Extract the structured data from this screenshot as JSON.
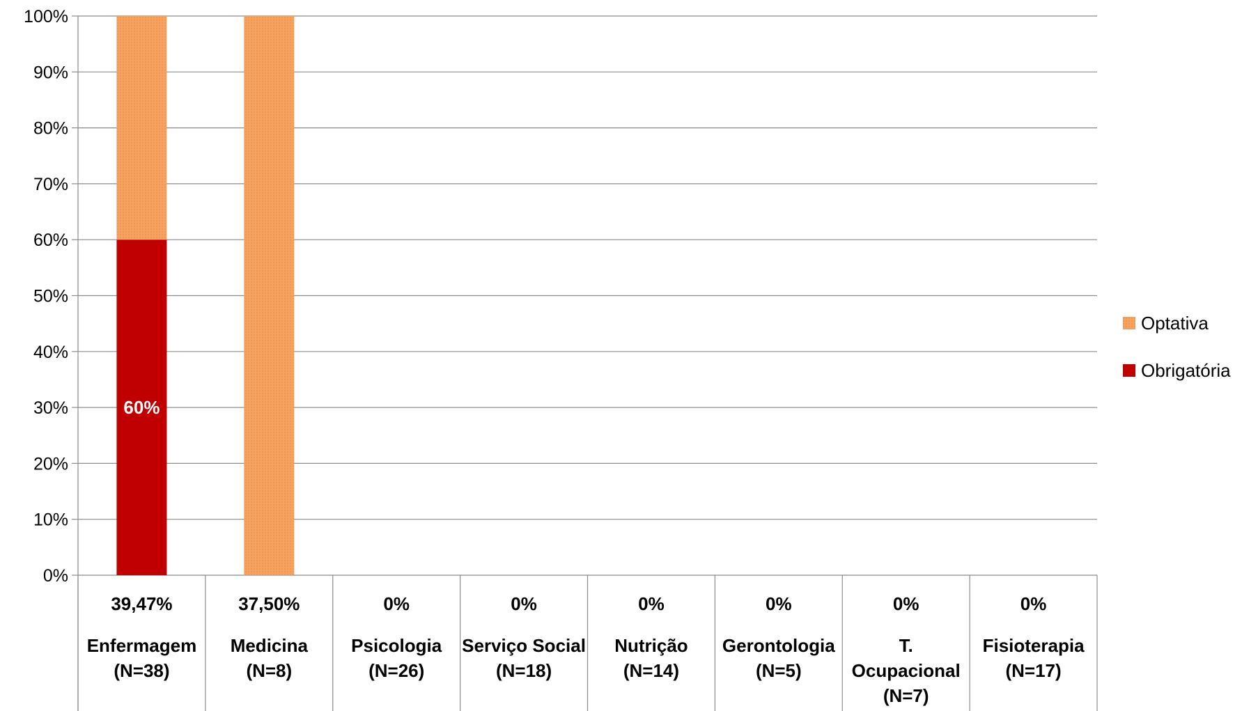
{
  "chart_data": {
    "type": "bar",
    "stacked": true,
    "percent_stacked": true,
    "categories": [
      {
        "pct": "39,47%",
        "lines": [
          "Enfermagem",
          "(N=38)"
        ]
      },
      {
        "pct": "37,50%",
        "lines": [
          "Medicina",
          "(N=8)"
        ]
      },
      {
        "pct": "0%",
        "lines": [
          "Psicologia",
          "(N=26)"
        ]
      },
      {
        "pct": "0%",
        "lines": [
          "Serviço Social",
          "(N=18)"
        ]
      },
      {
        "pct": "0%",
        "lines": [
          "Nutrição",
          "(N=14)"
        ]
      },
      {
        "pct": "0%",
        "lines": [
          "Gerontologia",
          "(N=5)"
        ]
      },
      {
        "pct": "0%",
        "lines": [
          "T.",
          "Ocupacional",
          "(N=7)"
        ]
      },
      {
        "pct": "0%",
        "lines": [
          "Fisioterapia",
          "(N=17)"
        ]
      }
    ],
    "series": [
      {
        "name": "Obrigatória",
        "color": "#c00000",
        "values": [
          60,
          0,
          0,
          0,
          0,
          0,
          0,
          0
        ],
        "data_labels": [
          "60%",
          "",
          "",
          "",
          "",
          "",
          "",
          ""
        ]
      },
      {
        "name": "Optativa",
        "color": "#f4a460",
        "values": [
          40,
          100,
          0,
          0,
          0,
          0,
          0,
          0
        ],
        "data_labels": [
          "",
          "",
          "",
          "",
          "",
          "",
          "",
          ""
        ]
      }
    ],
    "y_ticks": [
      "0%",
      "10%",
      "20%",
      "30%",
      "40%",
      "50%",
      "60%",
      "70%",
      "80%",
      "90%",
      "100%"
    ],
    "ylim": [
      0,
      100
    ],
    "grid": true,
    "legend_position": "right",
    "legend_order": [
      "Optativa",
      "Obrigatória"
    ]
  }
}
